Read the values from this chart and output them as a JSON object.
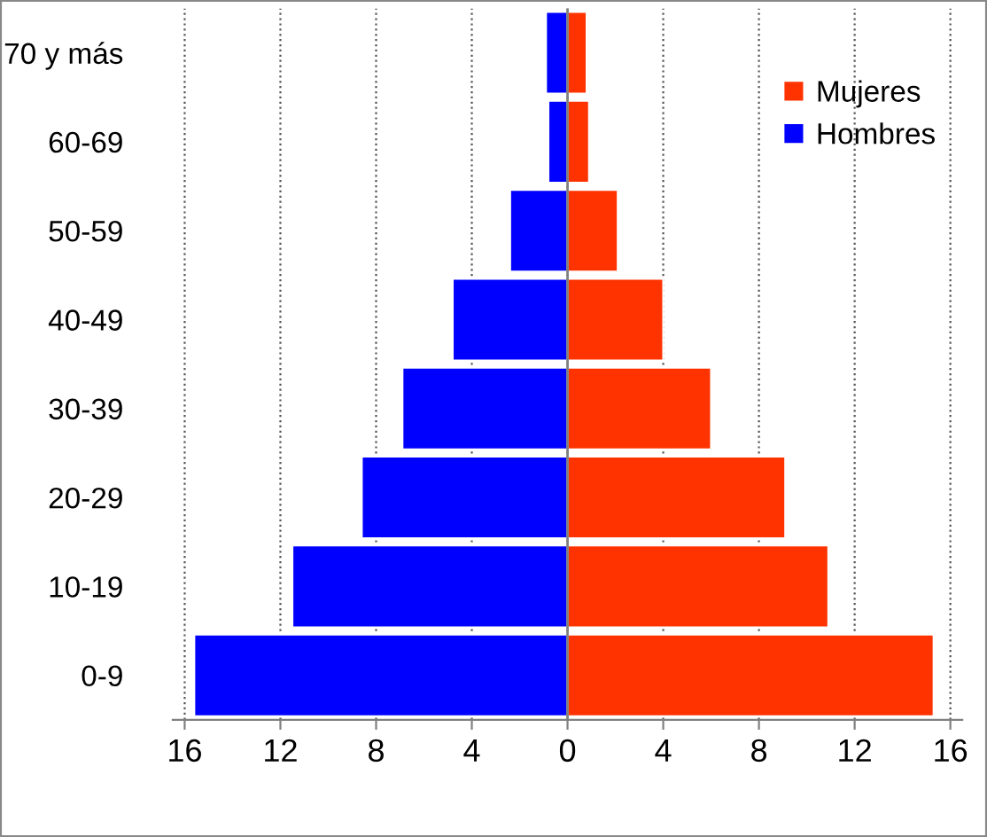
{
  "chart_data": {
    "type": "bar",
    "orientation": "horizontal",
    "stacked": true,
    "categories": [
      "70 y más",
      "60-69",
      "50-59",
      "40-49",
      "30-39",
      "20-29",
      "10-19",
      "0-9"
    ],
    "series": [
      {
        "name": "Mujeres",
        "color": "#ff3300",
        "values": [
          0.8,
          0.9,
          2.1,
          4.0,
          6.0,
          9.1,
          10.9,
          15.3
        ]
      },
      {
        "name": "Hombres",
        "color": "#0000ff",
        "values": [
          -0.9,
          -0.8,
          -2.4,
          -4.8,
          -6.9,
          -8.6,
          -11.5,
          -15.6
        ]
      }
    ],
    "xlim": [
      -16.5,
      16.5
    ],
    "xticks": [
      {
        "value": -16,
        "label": "16"
      },
      {
        "value": -12,
        "label": "12"
      },
      {
        "value": -8,
        "label": "8"
      },
      {
        "value": -4,
        "label": "4"
      },
      0,
      4,
      8,
      12,
      16
    ],
    "grid": "x",
    "line_style": "dotted",
    "legend": "right"
  }
}
